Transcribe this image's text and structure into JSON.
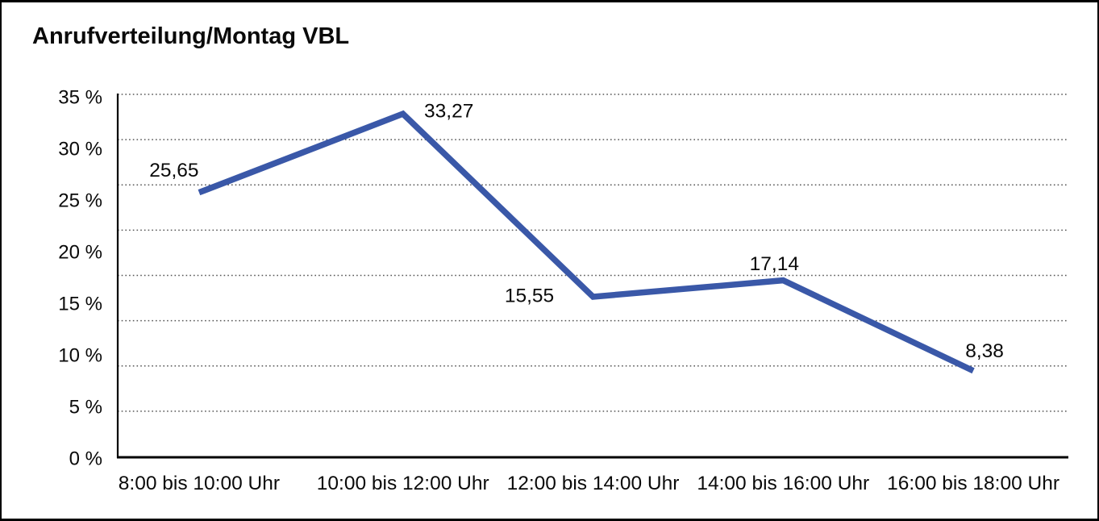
{
  "title": "Anrufverteilung/Montag VBL",
  "chart_data": {
    "type": "line",
    "title": "Anrufverteilung/Montag VBL",
    "categories": [
      "8:00 bis 10:00 Uhr",
      "10:00 bis 12:00 Uhr",
      "12:00 bis 14:00 Uhr",
      "14:00 bis 16:00 Uhr",
      "16:00 bis 18:00 Uhr"
    ],
    "values": [
      25.65,
      33.27,
      15.55,
      17.14,
      8.38
    ],
    "value_labels": [
      "25,65",
      "33,27",
      "15,55",
      "17,14",
      "8,38"
    ],
    "series_name": "Anrufverteilung Montag",
    "xlabel": "",
    "ylabel": "",
    "ylim": [
      0,
      35
    ],
    "y_tick_step": 5,
    "y_tick_labels": [
      "35 %",
      "30 %",
      "25 %",
      "20 %",
      "15 %",
      "10 %",
      "5 %",
      "0 %"
    ],
    "grid": "horizontal-dotted",
    "legend_position": "none",
    "colors": {
      "line": "#3A58A8",
      "text": "#0a0a0a",
      "grid": "#555555",
      "axis": "#000000",
      "background": "#ffffff",
      "frame_border": "#000000"
    }
  }
}
